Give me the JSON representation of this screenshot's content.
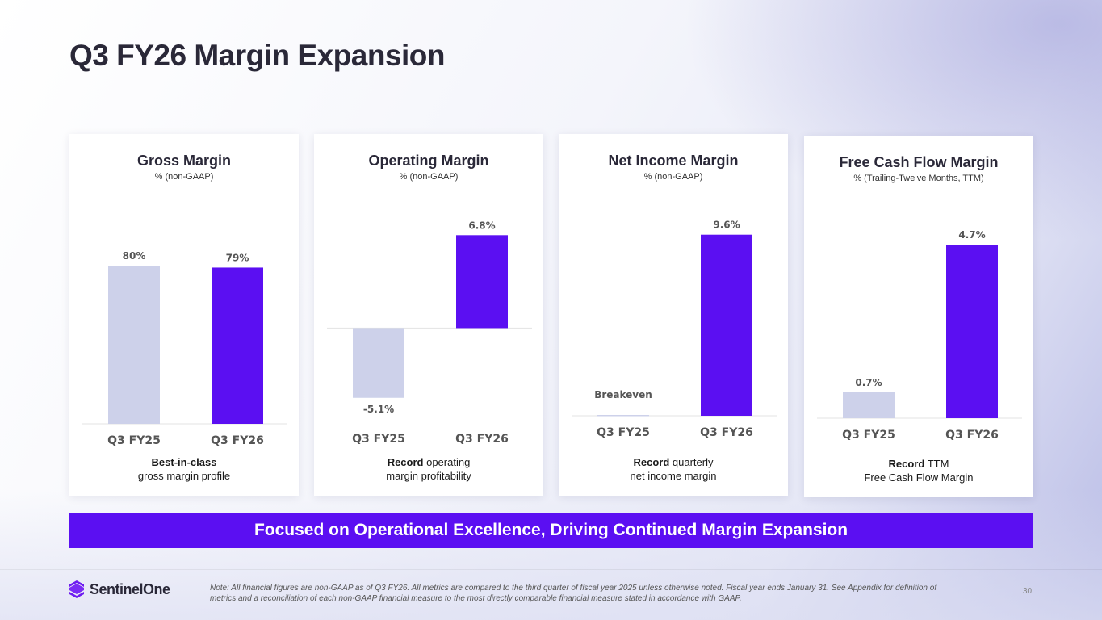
{
  "title": "Q3 FY26 Margin Expansion",
  "colors": {
    "prior": "#cdd1ea",
    "current": "#5b0ff2",
    "label": "#555555",
    "axis": "#e3e3e3"
  },
  "chart_data": [
    {
      "type": "bar",
      "title": "Gross Margin",
      "subtitle": "% (non-GAAP)",
      "categories": [
        "Q3 FY25",
        "Q3 FY26"
      ],
      "values": [
        80,
        79
      ],
      "value_labels": [
        "80%",
        "79%"
      ],
      "ylim": [
        0,
        100
      ],
      "footnote": {
        "bold": "Best-in-class",
        "rest": "gross margin profile"
      }
    },
    {
      "type": "bar",
      "title": "Operating Margin",
      "subtitle": "% (non-GAAP)",
      "categories": [
        "Q3 FY25",
        "Q3 FY26"
      ],
      "values": [
        -5.1,
        6.8
      ],
      "value_labels": [
        "-5.1%",
        "6.8%"
      ],
      "ylim": [
        -6,
        8
      ],
      "footnote": {
        "bold": "Record",
        "rest": " operating",
        "line2": "margin profitability"
      }
    },
    {
      "type": "bar",
      "title": "Net Income Margin",
      "subtitle": "% (non-GAAP)",
      "categories": [
        "Q3 FY25",
        "Q3 FY26"
      ],
      "values": [
        0,
        9.6
      ],
      "value_labels": [
        "Breakeven",
        "9.6%"
      ],
      "ylim": [
        0,
        11
      ],
      "footnote": {
        "bold": "Record",
        "rest": " quarterly",
        "line2": "net income margin"
      }
    },
    {
      "type": "bar",
      "title": "Free Cash Flow Margin",
      "subtitle": "% (Trailing-Twelve Months, TTM)",
      "categories": [
        "Q3 FY25",
        "Q3 FY26"
      ],
      "values": [
        0.7,
        4.7
      ],
      "value_labels": [
        "0.7%",
        "4.7%"
      ],
      "ylim": [
        0,
        5.6
      ],
      "footnote": {
        "bold": "Record",
        "rest": " TTM",
        "line2": "Free Cash Flow Margin"
      }
    }
  ],
  "banner": "Focused on Operational Excellence, Driving Continued Margin Expansion",
  "logo": "SentinelOne",
  "note": "Note: All financial figures are non-GAAP as of Q3 FY26. All metrics are compared to the third quarter of fiscal year 2025 unless otherwise noted. Fiscal year ends January 31. See Appendix for definition of metrics and a reconciliation of each non-GAAP financial measure to the most directly comparable financial measure stated in accordance with GAAP.",
  "page_number": "30"
}
